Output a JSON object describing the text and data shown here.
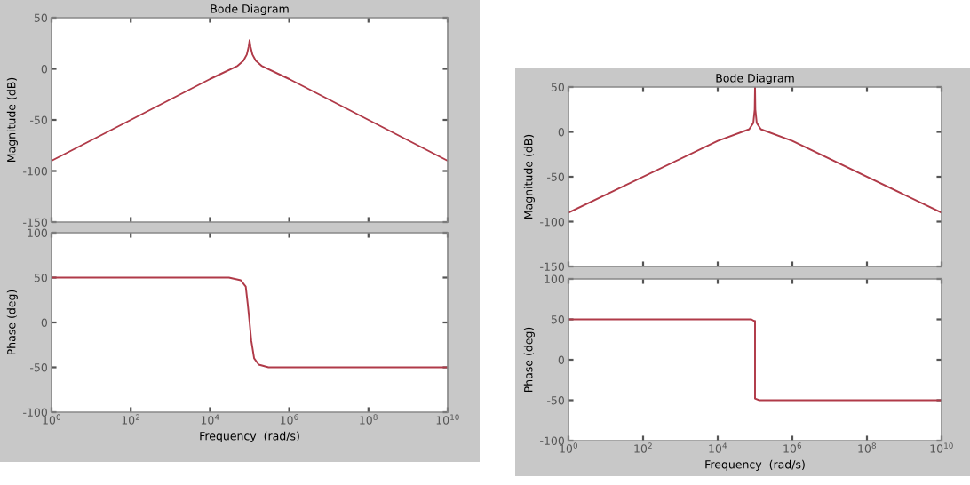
{
  "chart_data": [
    {
      "type": "line",
      "title": "Bode Diagram",
      "ylabel": "Magnitude (dB)",
      "log": "x",
      "tick_labels": "y",
      "grid": false,
      "x": [
        1,
        100,
        10000,
        50000,
        70000,
        85000,
        95000,
        100000,
        105000,
        118000,
        143000,
        200000,
        1000000,
        100000000,
        10000000000
      ],
      "series": [
        {
          "color": "#b03a48",
          "values": [
            -90,
            -50,
            -10,
            3,
            8,
            14,
            22,
            28,
            22,
            14,
            8,
            3,
            -10,
            -50,
            -90
          ]
        }
      ],
      "xlim": [
        1,
        10000000000
      ],
      "xticks": [
        {
          "value": 1,
          "label": null
        },
        {
          "value": 100,
          "label": null
        },
        {
          "value": 10000,
          "label": null
        },
        {
          "value": 1000000,
          "label": null
        },
        {
          "value": 100000000,
          "label": null
        },
        {
          "value": 10000000000,
          "label": null
        }
      ],
      "ylim": [
        -150,
        50
      ],
      "yticks": [
        -150,
        -100,
        -50,
        0,
        50
      ]
    },
    {
      "type": "line",
      "xlabel": "Frequency  (rad/s)",
      "ylabel": "Phase (deg)",
      "log": "x",
      "grid": false,
      "x": [
        1,
        30000,
        60000,
        80000,
        90000,
        100000,
        110000,
        130000,
        170000,
        300000,
        10000000000
      ],
      "series": [
        {
          "color": "#b03a48",
          "values": [
            50,
            50,
            47,
            40,
            20,
            0,
            -20,
            -40,
            -47,
            -50,
            -50
          ]
        }
      ],
      "xlim": [
        1,
        10000000000
      ],
      "xticks": [
        {
          "value": 1,
          "label": "10$^{0}$"
        },
        {
          "value": 100,
          "label": "10$^{2}$"
        },
        {
          "value": 10000,
          "label": "10$^{4}$"
        },
        {
          "value": 1000000,
          "label": "10$^{6}$"
        },
        {
          "value": 100000000,
          "label": "10$^{8}$"
        },
        {
          "value": 10000000000,
          "label": "10$^{10}$"
        }
      ],
      "ylim": [
        -100,
        100
      ],
      "yticks": [
        -100,
        -50,
        0,
        50,
        100
      ]
    },
    {
      "type": "line",
      "title": "Bode Diagram",
      "ylabel": "Magnitude (dB)",
      "log": "x",
      "tick_labels": "y",
      "grid": false,
      "x": [
        1,
        10000,
        70000,
        90000,
        98000,
        100000,
        102000,
        111000,
        143000,
        1000000,
        10000000000
      ],
      "series": [
        {
          "color": "#b03a48",
          "values": [
            -90,
            -10,
            3,
            10,
            25,
            50,
            25,
            10,
            3,
            -10,
            -90
          ]
        }
      ],
      "xlim": [
        1,
        10000000000
      ],
      "xticks": [
        {
          "value": 1,
          "label": null
        },
        {
          "value": 100,
          "label": null
        },
        {
          "value": 10000,
          "label": null
        },
        {
          "value": 1000000,
          "label": null
        },
        {
          "value": 100000000,
          "label": null
        },
        {
          "value": 10000000000,
          "label": null
        }
      ],
      "ylim": [
        -150,
        50
      ],
      "yticks": [
        -150,
        -100,
        -50,
        0,
        50
      ]
    },
    {
      "type": "line",
      "xlabel": "Frequency  (rad/s)",
      "ylabel": "Phase (deg)",
      "log": "x",
      "grid": false,
      "x": [
        1,
        80000,
        95000,
        100000,
        100000,
        130000,
        10000000000
      ],
      "series": [
        {
          "color": "#b03a48",
          "values": [
            50,
            50,
            48,
            48,
            -48,
            -50,
            -50
          ]
        }
      ],
      "xlim": [
        1,
        10000000000
      ],
      "xticks": [
        {
          "value": 1,
          "label": "10$^{0}$"
        },
        {
          "value": 100,
          "label": "10$^{2}$"
        },
        {
          "value": 10000,
          "label": "10$^{4}$"
        },
        {
          "value": 1000000,
          "label": "10$^{6}$"
        },
        {
          "value": 100000000,
          "label": "10$^{8}$"
        },
        {
          "value": 10000000000,
          "label": "10$^{10}$"
        }
      ],
      "ylim": [
        -100,
        100
      ],
      "yticks": [
        -100,
        -50,
        0,
        50,
        100
      ]
    }
  ]
}
